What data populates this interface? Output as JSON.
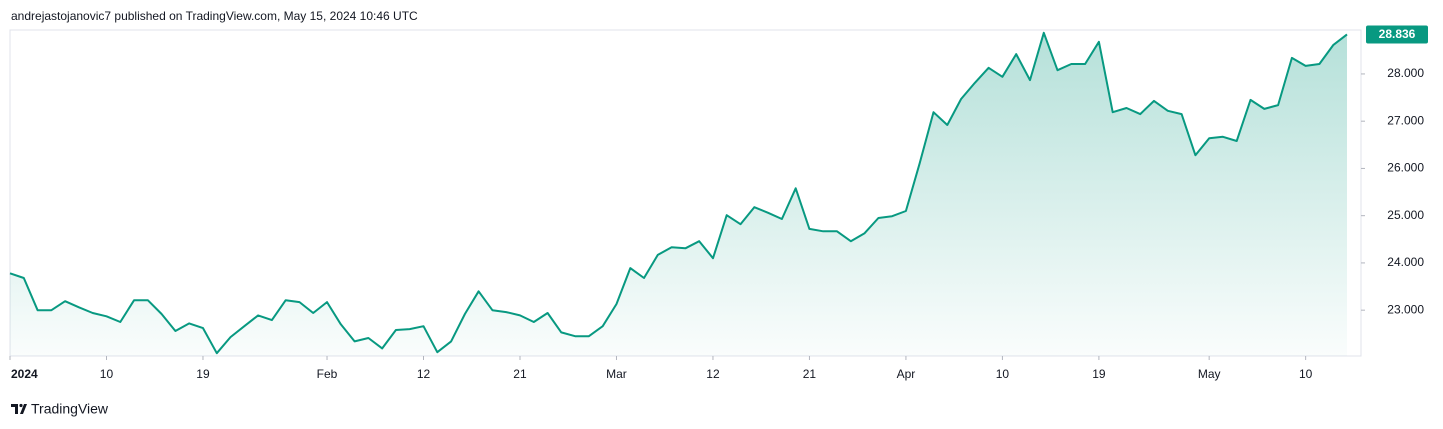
{
  "header": "andrejastojanovic7 published on TradingView.com, May 15, 2024 10:46 UTC",
  "footer": "TradingView",
  "chart_data": {
    "type": "area",
    "color": "#089981",
    "x": [
      "2024-01-01",
      "2024-01-02",
      "2024-01-03",
      "2024-01-04",
      "2024-01-05",
      "2024-01-08",
      "2024-01-09",
      "2024-01-10",
      "2024-01-11",
      "2024-01-12",
      "2024-01-15",
      "2024-01-16",
      "2024-01-17",
      "2024-01-18",
      "2024-01-19",
      "2024-01-22",
      "2024-01-23",
      "2024-01-24",
      "2024-01-25",
      "2024-01-26",
      "2024-01-29",
      "2024-01-30",
      "2024-01-31",
      "2024-02-01",
      "2024-02-02",
      "2024-02-05",
      "2024-02-06",
      "2024-02-07",
      "2024-02-08",
      "2024-02-09",
      "2024-02-12",
      "2024-02-13",
      "2024-02-14",
      "2024-02-15",
      "2024-02-16",
      "2024-02-19",
      "2024-02-20",
      "2024-02-21",
      "2024-02-22",
      "2024-02-23",
      "2024-02-26",
      "2024-02-27",
      "2024-02-28",
      "2024-02-29",
      "2024-03-01",
      "2024-03-04",
      "2024-03-05",
      "2024-03-06",
      "2024-03-07",
      "2024-03-08",
      "2024-03-11",
      "2024-03-12",
      "2024-03-13",
      "2024-03-14",
      "2024-03-15",
      "2024-03-18",
      "2024-03-19",
      "2024-03-20",
      "2024-03-21",
      "2024-03-22",
      "2024-03-25",
      "2024-03-26",
      "2024-03-27",
      "2024-03-28",
      "2024-03-29",
      "2024-04-01",
      "2024-04-02",
      "2024-04-03",
      "2024-04-04",
      "2024-04-05",
      "2024-04-08",
      "2024-04-09",
      "2024-04-10",
      "2024-04-11",
      "2024-04-12",
      "2024-04-15",
      "2024-04-16",
      "2024-04-17",
      "2024-04-18",
      "2024-04-19",
      "2024-04-22",
      "2024-04-23",
      "2024-04-24",
      "2024-04-25",
      "2024-04-26",
      "2024-04-29",
      "2024-04-30",
      "2024-05-01",
      "2024-05-02",
      "2024-05-03",
      "2024-05-06",
      "2024-05-07",
      "2024-05-08",
      "2024-05-09",
      "2024-05-10",
      "2024-05-13",
      "2024-05-14",
      "2024-05-15"
    ],
    "values": [
      23.78,
      23.68,
      23.0,
      23.0,
      23.19,
      23.06,
      22.94,
      22.87,
      22.75,
      23.21,
      23.21,
      22.92,
      22.56,
      22.72,
      22.62,
      22.09,
      22.43,
      22.66,
      22.89,
      22.79,
      23.21,
      23.17,
      22.94,
      23.17,
      22.7,
      22.34,
      22.41,
      22.19,
      22.58,
      22.6,
      22.66,
      22.11,
      22.34,
      22.92,
      23.4,
      23.0,
      22.96,
      22.89,
      22.75,
      22.94,
      22.53,
      22.45,
      22.45,
      22.66,
      23.13,
      23.89,
      23.68,
      24.17,
      24.33,
      24.31,
      24.46,
      24.1,
      25.01,
      24.82,
      25.18,
      25.06,
      24.93,
      25.58,
      24.72,
      24.67,
      24.67,
      24.46,
      24.63,
      24.95,
      24.99,
      25.1,
      26.11,
      27.19,
      26.92,
      27.47,
      27.81,
      28.13,
      27.94,
      28.42,
      27.87,
      28.87,
      28.08,
      28.21,
      28.21,
      28.68,
      27.19,
      27.28,
      27.15,
      27.43,
      27.22,
      27.15,
      26.28,
      26.64,
      26.67,
      26.58,
      27.45,
      27.26,
      27.34,
      28.34,
      28.17,
      28.21,
      28.61,
      28.836
    ],
    "ylim": [
      22.03,
      28.93
    ],
    "yticks": [
      {
        "value": 23,
        "label": "23.000"
      },
      {
        "value": 24,
        "label": "24.000"
      },
      {
        "value": 25,
        "label": "25.000"
      },
      {
        "value": 26,
        "label": "26.000"
      },
      {
        "value": 27,
        "label": "27.000"
      },
      {
        "value": 28,
        "label": "28.000"
      }
    ],
    "xticks": [
      {
        "value": "2024-01-01",
        "label": "2024"
      },
      {
        "value": "2024-01-10",
        "label": "10"
      },
      {
        "value": "2024-01-19",
        "label": "19"
      },
      {
        "value": "2024-02-01",
        "label": "Feb"
      },
      {
        "value": "2024-02-12",
        "label": "12"
      },
      {
        "value": "2024-02-21",
        "label": "21"
      },
      {
        "value": "2024-03-01",
        "label": "Mar"
      },
      {
        "value": "2024-03-12",
        "label": "12"
      },
      {
        "value": "2024-03-21",
        "label": "21"
      },
      {
        "value": "2024-04-01",
        "label": "Apr"
      },
      {
        "value": "2024-04-10",
        "label": "10"
      },
      {
        "value": "2024-04-19",
        "label": "19"
      },
      {
        "value": "2024-05-01",
        "label": "May"
      },
      {
        "value": "2024-05-10",
        "label": "10"
      }
    ]
  }
}
